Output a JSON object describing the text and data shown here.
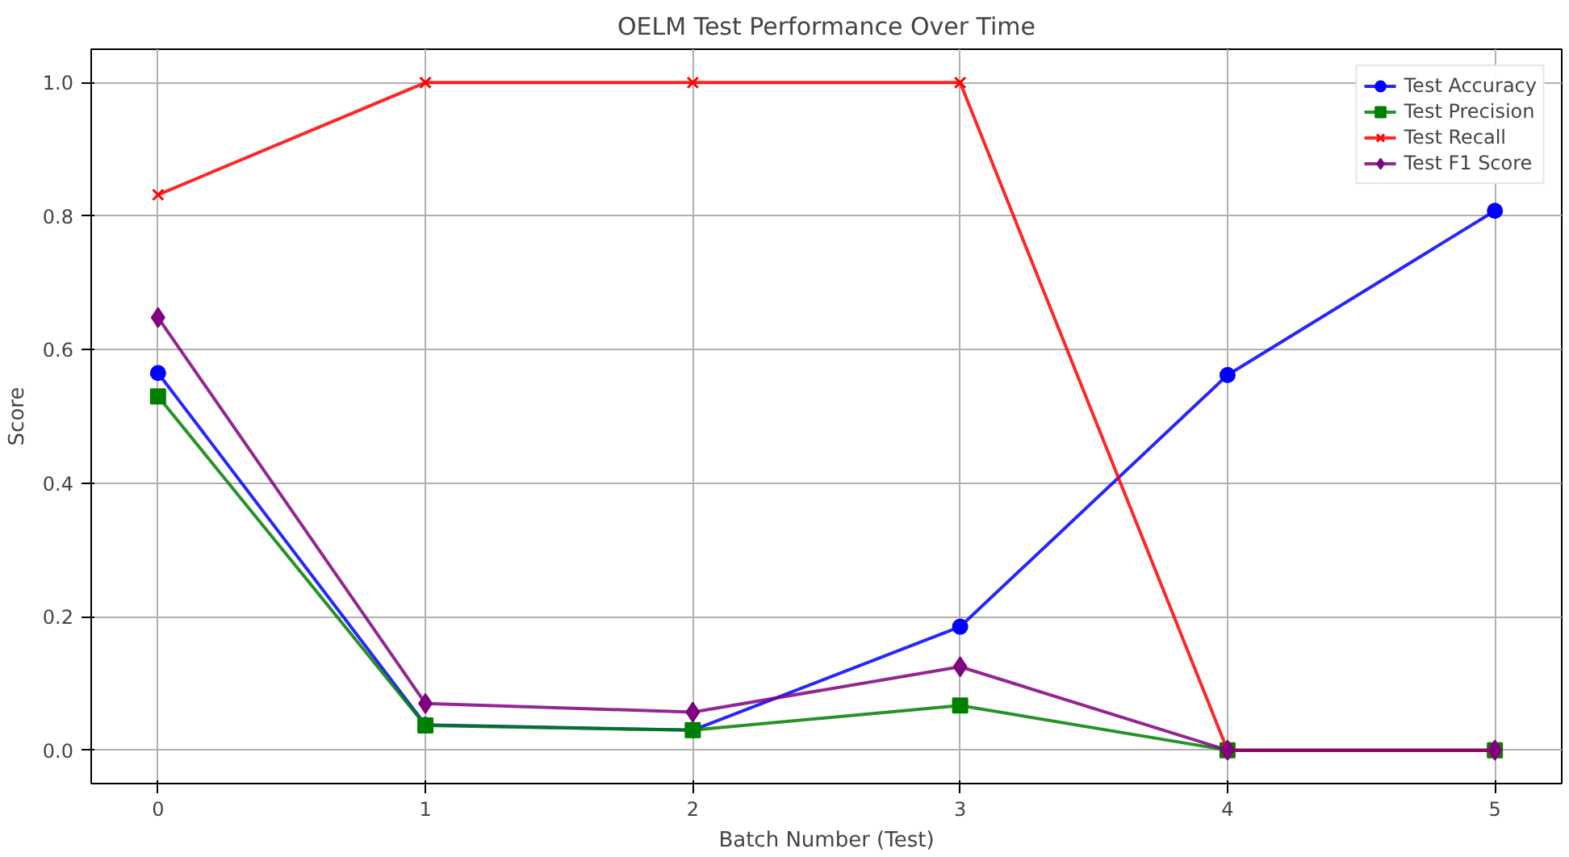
{
  "chart_data": {
    "type": "line",
    "title": "OELM Test Performance Over Time",
    "xlabel": "Batch Number (Test)",
    "ylabel": "Score",
    "x": [
      0,
      1,
      2,
      3,
      4,
      5
    ],
    "series": [
      {
        "name": "Test Accuracy",
        "color": "#0000ff",
        "marker": "circle",
        "values": [
          0.565,
          0.038,
          0.03,
          0.185,
          0.562,
          0.808
        ]
      },
      {
        "name": "Test Precision",
        "color": "#008000",
        "marker": "square",
        "values": [
          0.53,
          0.037,
          0.03,
          0.067,
          0.0,
          0.0
        ]
      },
      {
        "name": "Test Recall",
        "color": "#ff0000",
        "marker": "cross",
        "values": [
          0.832,
          1.0,
          1.0,
          1.0,
          0.0,
          0.0
        ]
      },
      {
        "name": "Test F1 Score",
        "color": "#800080",
        "marker": "diamond",
        "values": [
          0.648,
          0.07,
          0.057,
          0.125,
          0.0,
          0.0
        ]
      }
    ],
    "xlim": [
      -0.25,
      5.25
    ],
    "ylim": [
      -0.05,
      1.05
    ],
    "xticks": [
      0,
      1,
      2,
      3,
      4,
      5
    ],
    "yticks": [
      {
        "value": 0,
        "label": "0.0"
      },
      {
        "value": 0.2,
        "label": "0.2"
      },
      {
        "value": 0.4,
        "label": "0.4"
      },
      {
        "value": 0.6,
        "label": "0.6"
      },
      {
        "value": 0.8,
        "label": "0.8"
      },
      {
        "value": 1.0,
        "label": "1.0"
      }
    ],
    "grid": true,
    "legend": "top right",
    "line_style": "solid"
  }
}
